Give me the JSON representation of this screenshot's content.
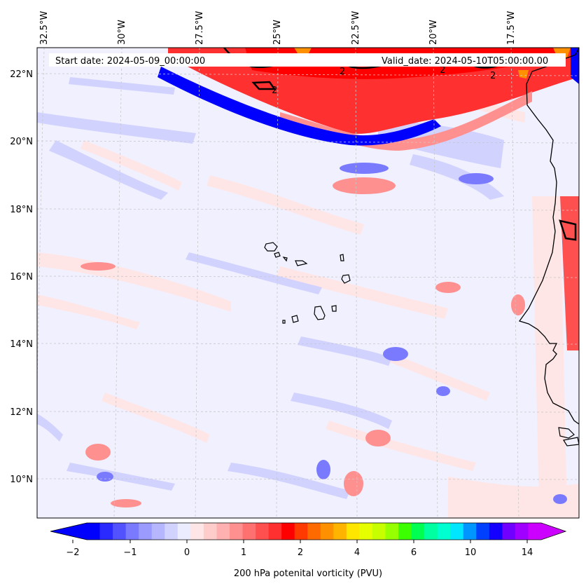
{
  "map": {
    "start_date": "Start date: 2024-05-09_00:00:00",
    "valid_date": "Valid_date: 2024-05-10T05:00:00.00",
    "lon_labels": [
      "32.5°W",
      "30°W",
      "27.5°W",
      "25°W",
      "22.5°W",
      "20°W",
      "17.5°W"
    ],
    "lat_labels": [
      "22°N",
      "20°N",
      "18°N",
      "16°N",
      "14°N",
      "12°N",
      "10°N"
    ],
    "contour_label": "2",
    "colorbar": {
      "ticks": [
        "−2",
        "−1",
        "0",
        "1",
        "2",
        "4",
        "6",
        "10",
        "14"
      ],
      "label": "200 hPa potenital vorticity (PVU)"
    }
  },
  "colors": {
    "background": "#f0f0ff",
    "grid": "#c8c8c8",
    "coast": "#000000",
    "palette": [
      "#0000ff",
      "#2a2aff",
      "#5252ff",
      "#7a7aff",
      "#9a9aff",
      "#b6b6ff",
      "#d2d2ff",
      "#ececff",
      "#ffe6e6",
      "#ffcccc",
      "#ffb0b0",
      "#ff9090",
      "#ff7070",
      "#ff5050",
      "#ff3030",
      "#ff0000",
      "#ff3a00",
      "#ff6a00",
      "#ff9000",
      "#ffb400",
      "#ffe600",
      "#e6ff00",
      "#c8ff00",
      "#96ff00",
      "#3cff00",
      "#00ff50",
      "#00ffa0",
      "#00ffd0",
      "#00e6ff",
      "#0096ff",
      "#0040ff",
      "#1400ff",
      "#7000ff",
      "#a000ff",
      "#cc00ff"
    ]
  }
}
